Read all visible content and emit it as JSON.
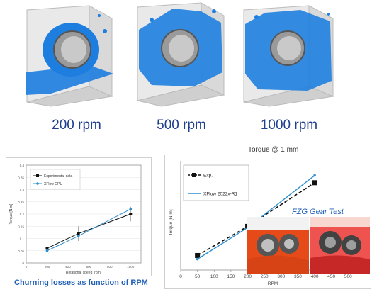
{
  "sims": [
    {
      "label": "200 rpm"
    },
    {
      "label": "500 rpm"
    },
    {
      "label": "1000 rpm"
    }
  ],
  "left_caption": "Churning losses as function of RPM",
  "right_title": "Torque @ 1 mm",
  "fzg_label": "FZG Gear Test",
  "colors": {
    "fluid": "#1f7fe0",
    "box": "#bdbdbd",
    "black_series": "#111111",
    "blue_series": "#2c8fcf",
    "caption": "#1f5fb6"
  },
  "chart_data": [
    {
      "type": "line",
      "title": "",
      "xlabel": "Rotational speed [rpm]",
      "ylabel": "Torque [N.m]",
      "xlim": [
        0,
        1100
      ],
      "ylim": [
        0,
        0.4
      ],
      "xticks": [
        0,
        200,
        400,
        600,
        800,
        1000
      ],
      "yticks": [
        0,
        0.05,
        0.1,
        0.15,
        0.2,
        0.25,
        0.3,
        0.35,
        0.4
      ],
      "legend": "top-left",
      "series": [
        {
          "name": "Experimental data",
          "x": [
            200,
            500,
            1000
          ],
          "y": [
            0.06,
            0.12,
            0.2
          ],
          "err": [
            0.04,
            0.03,
            0.03
          ]
        },
        {
          "name": "XFlow GPU",
          "x": [
            200,
            500,
            1000
          ],
          "y": [
            0.05,
            0.11,
            0.22
          ]
        }
      ]
    },
    {
      "type": "line",
      "title": "Torque @ 1 mm",
      "xlabel": "RPM",
      "ylabel": "Torque [N.m]",
      "xlim": [
        0,
        550
      ],
      "xticks": [
        0,
        50,
        100,
        150,
        200,
        250,
        300,
        350,
        400,
        450,
        500
      ],
      "legend": "top-left",
      "series": [
        {
          "name": "Exp.",
          "x": [
            50,
            200,
            400
          ],
          "y": [
            0.22,
            0.46,
            0.82
          ]
        },
        {
          "name": "XFlow 2022x-R1",
          "x": [
            50,
            200,
            400
          ],
          "y": [
            0.19,
            0.45,
            0.88
          ]
        }
      ]
    }
  ]
}
